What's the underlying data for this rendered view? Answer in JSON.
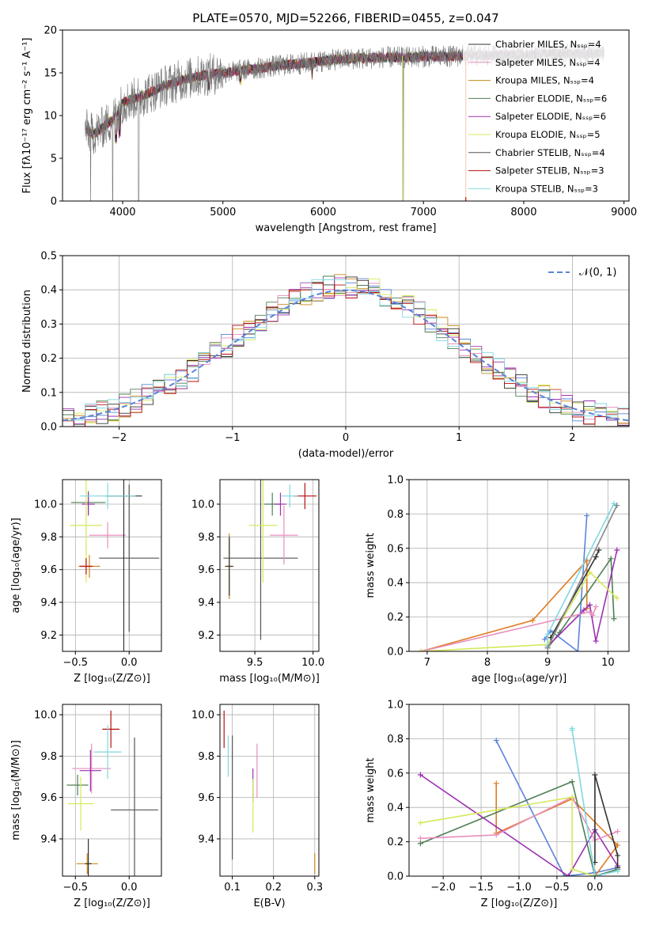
{
  "title": "PLATE=0570, MJD=52266, FIBERID=0455, z=0.047",
  "colors": [
    "#555555",
    "#e88fbf",
    "#c8891a",
    "#4f7f55",
    "#9b30b0",
    "#d6e85a",
    "#333333",
    "#b80f0f",
    "#80d8e0"
  ],
  "extra_colors": {
    "blue": "#5b84d8",
    "orange": "#e07b20",
    "gray": "#888888"
  },
  "chart_data": [
    {
      "type": "line",
      "id": "spectrum",
      "xlabel": "wavelength [Angstrom, rest frame]",
      "ylabel": "Flux [fλ10⁻¹⁷ erg cm⁻² s⁻¹ A⁻¹]",
      "xlim": [
        3400,
        9050
      ],
      "ylim": [
        0,
        20
      ],
      "xticks": [
        "4000",
        "5000",
        "6000",
        "7000",
        "8000",
        "9000"
      ],
      "yticks": [
        "0",
        "5",
        "10",
        "15",
        "20"
      ],
      "series": [
        {
          "name": "Chabrier MILES, Nₛₛₚ=4"
        },
        {
          "name": "Salpeter MILES, Nₛₛₚ=4"
        },
        {
          "name": "Kroupa MILES, Nₛₛₚ=4"
        },
        {
          "name": "Chabrier ELODIE, Nₛₛₚ=6"
        },
        {
          "name": "Salpeter ELODIE, Nₛₛₚ=6"
        },
        {
          "name": "Kroupa ELODIE, Nₛₛₚ=5"
        },
        {
          "name": "Chabrier STELIB, Nₛₛₚ=4"
        },
        {
          "name": "Salpeter STELIB, Nₛₛₚ=3"
        },
        {
          "name": "Kroupa STELIB, Nₛₛₚ=3"
        }
      ],
      "continuum": {
        "x": [
          3620,
          3700,
          3800,
          3900,
          4000,
          4200,
          4400,
          4600,
          4800,
          5000,
          5200,
          5400,
          5600,
          5800,
          6000,
          6200,
          6400,
          6600,
          6800,
          7000,
          7200,
          7400,
          7600,
          7800,
          8000,
          8200,
          8400,
          8600,
          8800
        ],
        "y": [
          8.5,
          7.8,
          8.6,
          9.5,
          11.5,
          12.3,
          13.4,
          14.2,
          14.7,
          15.0,
          15.3,
          15.6,
          15.9,
          16.1,
          16.4,
          16.6,
          16.7,
          16.8,
          16.8,
          16.9,
          16.9,
          17.0,
          17.0,
          17.1,
          17.1,
          17.2,
          17.2,
          17.2,
          17.3
        ]
      }
    },
    {
      "type": "line",
      "id": "residuals",
      "xlabel": "(data-model)/error",
      "ylabel": "Normed distribution",
      "xlim": [
        -2.5,
        2.5
      ],
      "ylim": [
        0,
        0.5
      ],
      "xticks": [
        "−2",
        "−1",
        "0",
        "1",
        "2"
      ],
      "yticks": [
        "0.0",
        "0.1",
        "0.2",
        "0.3",
        "0.4",
        "0.5"
      ],
      "legend": "𝒩(0, 1)"
    },
    {
      "type": "scatter",
      "id": "age-vs-Z",
      "xlabel": "Z [log₁₀(Z/Z⊙)]",
      "ylabel": "age  [log₁₀(age/yr)]",
      "xlim": [
        -0.62,
        0.3
      ],
      "ylim": [
        9.1,
        10.15
      ],
      "xticks": [
        "−0.5",
        "0.0"
      ],
      "yticks": [
        "9.2",
        "9.4",
        "9.6",
        "9.8",
        "10.0"
      ],
      "points": [
        {
          "x": 0.0,
          "y": 9.67,
          "xe": 0.28,
          "ye": 0.45,
          "c": 0
        },
        {
          "x": -0.2,
          "y": 9.81,
          "xe": 0.17,
          "ye": 0.08,
          "c": 1
        },
        {
          "x": -0.37,
          "y": 9.62,
          "xe": 0.1,
          "ye": 0.07,
          "c": 2
        },
        {
          "x": -0.38,
          "y": 10.01,
          "xe": 0.16,
          "ye": 0.07,
          "c": 3
        },
        {
          "x": -0.38,
          "y": 10.0,
          "xe": 0.06,
          "ye": 0.07,
          "c": 4
        },
        {
          "x": -0.4,
          "y": 9.87,
          "xe": 0.15,
          "ye": 0.35,
          "c": 5
        },
        {
          "x": -0.05,
          "y": 10.05,
          "xe": 0.17,
          "ye": 0.95,
          "c": 6
        },
        {
          "x": -0.4,
          "y": 9.62,
          "xe": 0.06,
          "ye": 0.05,
          "c": 7
        },
        {
          "x": -0.2,
          "y": 10.05,
          "xe": 0.26,
          "ye": 0.08,
          "c": 8
        }
      ]
    },
    {
      "type": "scatter",
      "id": "age-vs-mass",
      "xlabel": "mass [log₁₀(M/M⊙)]",
      "ylabel": "",
      "xlim": [
        9.2,
        10.05
      ],
      "ylim": [
        9.1,
        10.15
      ],
      "xticks": [
        "9.5",
        "10.0"
      ],
      "yticks": [
        "9.2",
        "9.4",
        "9.6",
        "9.8",
        "10.0"
      ],
      "points": [
        {
          "x": 9.55,
          "y": 9.67,
          "xe": 0.32,
          "ye": 0.5,
          "c": 0
        },
        {
          "x": 9.75,
          "y": 9.81,
          "xe": 0.12,
          "ye": 0.18,
          "c": 1
        },
        {
          "x": 9.28,
          "y": 9.62,
          "xe": 0.04,
          "ye": 0.2,
          "c": 2
        },
        {
          "x": 9.65,
          "y": 10.0,
          "xe": 0.07,
          "ye": 0.07,
          "c": 3
        },
        {
          "x": 9.72,
          "y": 10.0,
          "xe": 0.05,
          "ye": 0.07,
          "c": 4
        },
        {
          "x": 9.57,
          "y": 9.87,
          "xe": 0.12,
          "ye": 0.35,
          "c": 5
        },
        {
          "x": 9.28,
          "y": 9.62,
          "xe": 0.03,
          "ye": 0.18,
          "c": 6
        },
        {
          "x": 9.93,
          "y": 10.05,
          "xe": 0.1,
          "ye": 0.08,
          "c": 7
        },
        {
          "x": 9.8,
          "y": 10.05,
          "xe": 0.07,
          "ye": 0.07,
          "c": 8
        }
      ]
    },
    {
      "type": "line",
      "id": "weight-vs-age",
      "xlabel": "age  [log₁₀(age/yr)]",
      "ylabel": "mass weight",
      "xlim": [
        6.7,
        10.35
      ],
      "ylim": [
        0,
        1.0
      ],
      "xticks": [
        "7",
        "8",
        "9",
        "10"
      ],
      "yticks": [
        "0.0",
        "0.2",
        "0.4",
        "0.6",
        "0.8",
        "1.0"
      ],
      "series": [
        {
          "c": "blue",
          "x": [
            8.95,
            9.05,
            9.5,
            9.65
          ],
          "y": [
            0.07,
            0.12,
            0.0,
            0.79
          ]
        },
        {
          "c": "orange",
          "x": [
            6.9,
            8.75,
            9.65,
            9.65
          ],
          "y": [
            0.0,
            0.18,
            0.53,
            0.25
          ]
        },
        {
          "c": 3,
          "x": [
            9.0,
            9.2,
            10.05,
            10.1
          ],
          "y": [
            0.02,
            0.11,
            0.54,
            0.19
          ]
        },
        {
          "c": 4,
          "x": [
            9.0,
            9.6,
            9.7,
            9.8,
            10.15
          ],
          "y": [
            0.03,
            0.24,
            0.27,
            0.06,
            0.59
          ]
        },
        {
          "c": 1,
          "x": [
            6.9,
            9.7,
            9.75,
            9.8
          ],
          "y": [
            0.0,
            0.23,
            0.21,
            0.26
          ]
        },
        {
          "c": 5,
          "x": [
            6.9,
            9.0,
            9.7,
            10.15
          ],
          "y": [
            0.0,
            0.04,
            0.46,
            0.31
          ]
        },
        {
          "c": 6,
          "x": [
            9.05,
            9.8,
            9.85
          ],
          "y": [
            0.08,
            0.55,
            0.59
          ]
        },
        {
          "c": 8,
          "x": [
            9.0,
            9.0,
            10.1,
            10.15
          ],
          "y": [
            0.03,
            0.1,
            0.86,
            0.85
          ]
        },
        {
          "c": "gray",
          "x": [
            9.0,
            10.15
          ],
          "y": [
            0.02,
            0.85
          ]
        }
      ]
    },
    {
      "type": "scatter",
      "id": "mass-vs-Z",
      "xlabel": "Z [log₁₀(Z/Z⊙)]",
      "ylabel": "mass [log₁₀(M/M⊙)]",
      "xlim": [
        -0.62,
        0.3
      ],
      "ylim": [
        9.22,
        10.05
      ],
      "xticks": [
        "−0.5",
        "0.0"
      ],
      "yticks": [
        "9.4",
        "9.6",
        "9.8",
        "10.0"
      ],
      "points": [
        {
          "x": 0.05,
          "y": 9.54,
          "xe": 0.22,
          "ye": 0.35,
          "c": 0
        },
        {
          "x": -0.35,
          "y": 9.74,
          "xe": 0.18,
          "ye": 0.12,
          "c": 1
        },
        {
          "x": -0.39,
          "y": 9.28,
          "xe": 0.1,
          "ye": 0.05,
          "c": 2
        },
        {
          "x": -0.48,
          "y": 9.66,
          "xe": 0.1,
          "ye": 0.05,
          "c": 3
        },
        {
          "x": -0.36,
          "y": 9.73,
          "xe": 0.1,
          "ye": 0.1,
          "c": 4
        },
        {
          "x": -0.45,
          "y": 9.57,
          "xe": 0.12,
          "ye": 0.13,
          "c": 5
        },
        {
          "x": -0.38,
          "y": 9.28,
          "xe": 0.03,
          "ye": 0.12,
          "c": 6
        },
        {
          "x": -0.17,
          "y": 9.93,
          "xe": 0.08,
          "ye": 0.09,
          "c": 7
        },
        {
          "x": -0.2,
          "y": 9.82,
          "xe": 0.13,
          "ye": 0.13,
          "c": 8
        }
      ]
    },
    {
      "type": "scatter",
      "id": "mass-vs-EBV",
      "xlabel": "E(B-V)",
      "ylabel": "",
      "xlim": [
        0.07,
        0.31
      ],
      "ylim": [
        9.22,
        10.05
      ],
      "xticks": [
        "0.1",
        "0.2",
        "0.3"
      ],
      "yticks": [
        "9.4",
        "9.6",
        "9.8",
        "10.0"
      ],
      "points": [
        {
          "x": 0.1,
          "y": 9.6,
          "xe": 0,
          "ye": 0.3,
          "c": 0
        },
        {
          "x": 0.16,
          "y": 9.73,
          "xe": 0,
          "ye": 0.13,
          "c": 1
        },
        {
          "x": 0.3,
          "y": 9.28,
          "xe": 0,
          "ye": 0.05,
          "c": 2
        },
        {
          "x": 0.15,
          "y": 9.66,
          "xe": 0,
          "ye": 0.08,
          "c": 4
        },
        {
          "x": 0.15,
          "y": 9.56,
          "xe": 0,
          "ye": 0.13,
          "c": 5
        },
        {
          "x": 0.08,
          "y": 9.93,
          "xe": 0,
          "ye": 0.09,
          "c": 7
        },
        {
          "x": 0.09,
          "y": 9.8,
          "xe": 0,
          "ye": 0.1,
          "c": 8
        }
      ]
    },
    {
      "type": "line",
      "id": "weight-vs-Z",
      "xlabel": "Z [log₁₀(Z/Z⊙)]",
      "ylabel": "mass weight",
      "xlim": [
        -2.45,
        0.45
      ],
      "ylim": [
        0,
        1.0
      ],
      "xticks": [
        "−2.0",
        "−1.5",
        "−1.0",
        "−0.5",
        "0.0"
      ],
      "yticks": [
        "0.0",
        "0.2",
        "0.4",
        "0.6",
        "0.8",
        "1.0"
      ],
      "series": [
        {
          "c": "blue",
          "x": [
            -1.3,
            -0.4,
            0.0,
            0.3
          ],
          "y": [
            0.79,
            0.0,
            0.02,
            0.05
          ]
        },
        {
          "c": "orange",
          "x": [
            -1.3,
            -1.3,
            -0.3,
            0.3,
            0.0
          ],
          "y": [
            0.54,
            0.25,
            0.45,
            0.18,
            0.0
          ]
        },
        {
          "c": 3,
          "x": [
            -2.3,
            -0.3,
            0.0,
            0.3
          ],
          "y": [
            0.19,
            0.55,
            0.0,
            0.04
          ]
        },
        {
          "c": 4,
          "x": [
            -2.3,
            -0.35,
            0.0,
            0.3
          ],
          "y": [
            0.59,
            0.0,
            0.27,
            0.06
          ]
        },
        {
          "c": 1,
          "x": [
            -2.3,
            -1.3,
            -0.3,
            0.0,
            0.3
          ],
          "y": [
            0.22,
            0.24,
            0.46,
            0.21,
            0.26
          ]
        },
        {
          "c": 5,
          "x": [
            -2.3,
            -0.3,
            -0.3,
            0.0
          ],
          "y": [
            0.31,
            0.46,
            0.04,
            0.0
          ]
        },
        {
          "c": 6,
          "x": [
            0.0,
            0.0,
            0.3,
            0.3
          ],
          "y": [
            0.08,
            0.59,
            0.12,
            0.05
          ]
        },
        {
          "c": 8,
          "x": [
            -0.3,
            -0.3,
            0.0,
            0.3
          ],
          "y": [
            0.86,
            0.85,
            0.0,
            0.03
          ]
        }
      ]
    }
  ]
}
